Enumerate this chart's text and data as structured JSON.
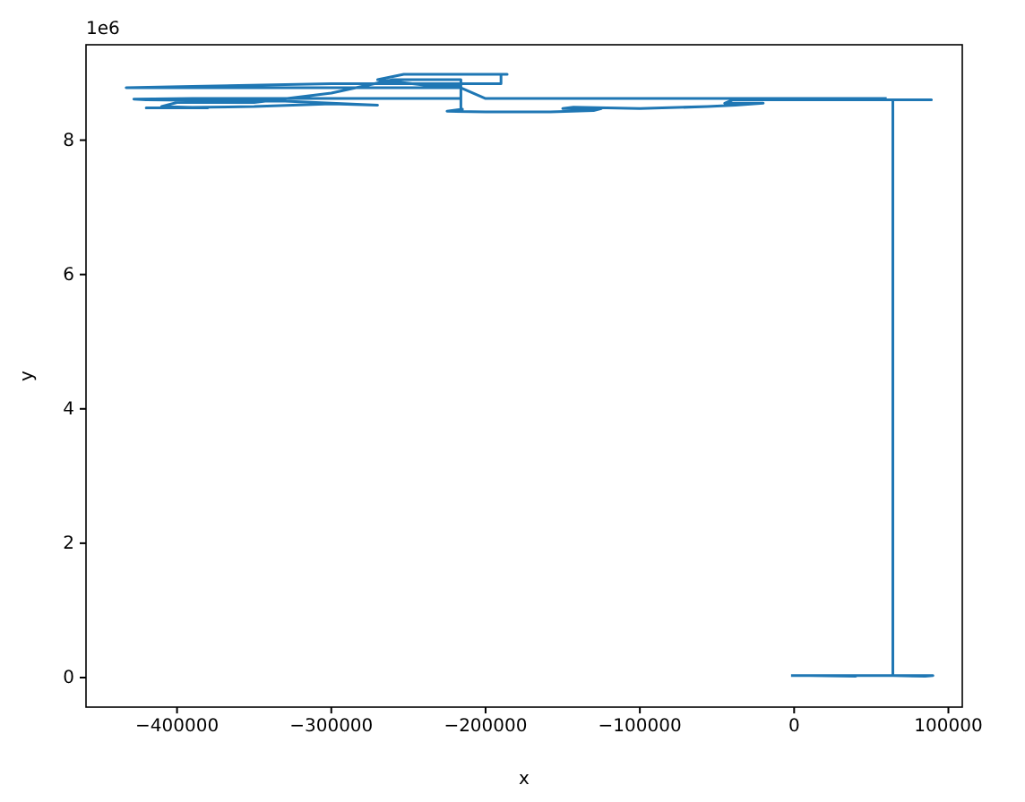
{
  "chart_data": {
    "type": "line",
    "xlabel": "x",
    "ylabel": "y",
    "annotations": [
      "1e6"
    ],
    "xlim": [
      -459000,
      109000
    ],
    "ylim": [
      -0.44,
      9.42
    ],
    "xticks": [
      -400000,
      -300000,
      -200000,
      -100000,
      0,
      100000
    ],
    "yticks": [
      0,
      2,
      4,
      6,
      8
    ],
    "series": [
      {
        "color": "#1f77b4",
        "x": [
          -2000,
          20000,
          40000,
          10000,
          60000,
          90000,
          85000,
          64000,
          64000,
          89000,
          60000,
          -40000,
          -45000,
          -20000,
          -38000,
          -56000,
          -100000,
          -143000,
          -150000,
          -125000,
          -130000,
          -158000,
          -200000,
          -225000,
          -215000,
          -216000,
          -216000,
          -260000,
          -300000,
          -350000,
          -400000,
          -410000,
          -380000,
          -420000,
          -350000,
          -300000,
          -270000,
          -330000,
          -420000,
          -428000,
          -390000,
          -300000,
          -216000,
          -216000,
          -240000,
          -270000,
          -253000,
          -186000,
          -190000,
          -190000,
          -300000,
          -390000,
          -433000,
          -380000,
          -300000,
          -216000,
          -200000,
          -180000,
          -120000,
          -60000,
          -20000,
          10000,
          60000
        ],
        "values": [
          0.03,
          0.03,
          0.02,
          0.03,
          0.03,
          0.03,
          0.02,
          0.03,
          8.6,
          8.6,
          8.6,
          8.6,
          8.55,
          8.55,
          8.52,
          8.5,
          8.47,
          8.49,
          8.47,
          8.47,
          8.44,
          8.42,
          8.42,
          8.43,
          8.46,
          8.46,
          8.9,
          8.9,
          8.7,
          8.56,
          8.56,
          8.5,
          8.48,
          8.48,
          8.5,
          8.54,
          8.52,
          8.58,
          8.6,
          8.61,
          8.62,
          8.62,
          8.62,
          8.8,
          8.82,
          8.9,
          8.98,
          8.98,
          8.98,
          8.84,
          8.84,
          8.8,
          8.78,
          8.78,
          8.78,
          8.78,
          8.62,
          8.62,
          8.62,
          8.62,
          8.62,
          8.62,
          8.62
        ]
      }
    ]
  }
}
